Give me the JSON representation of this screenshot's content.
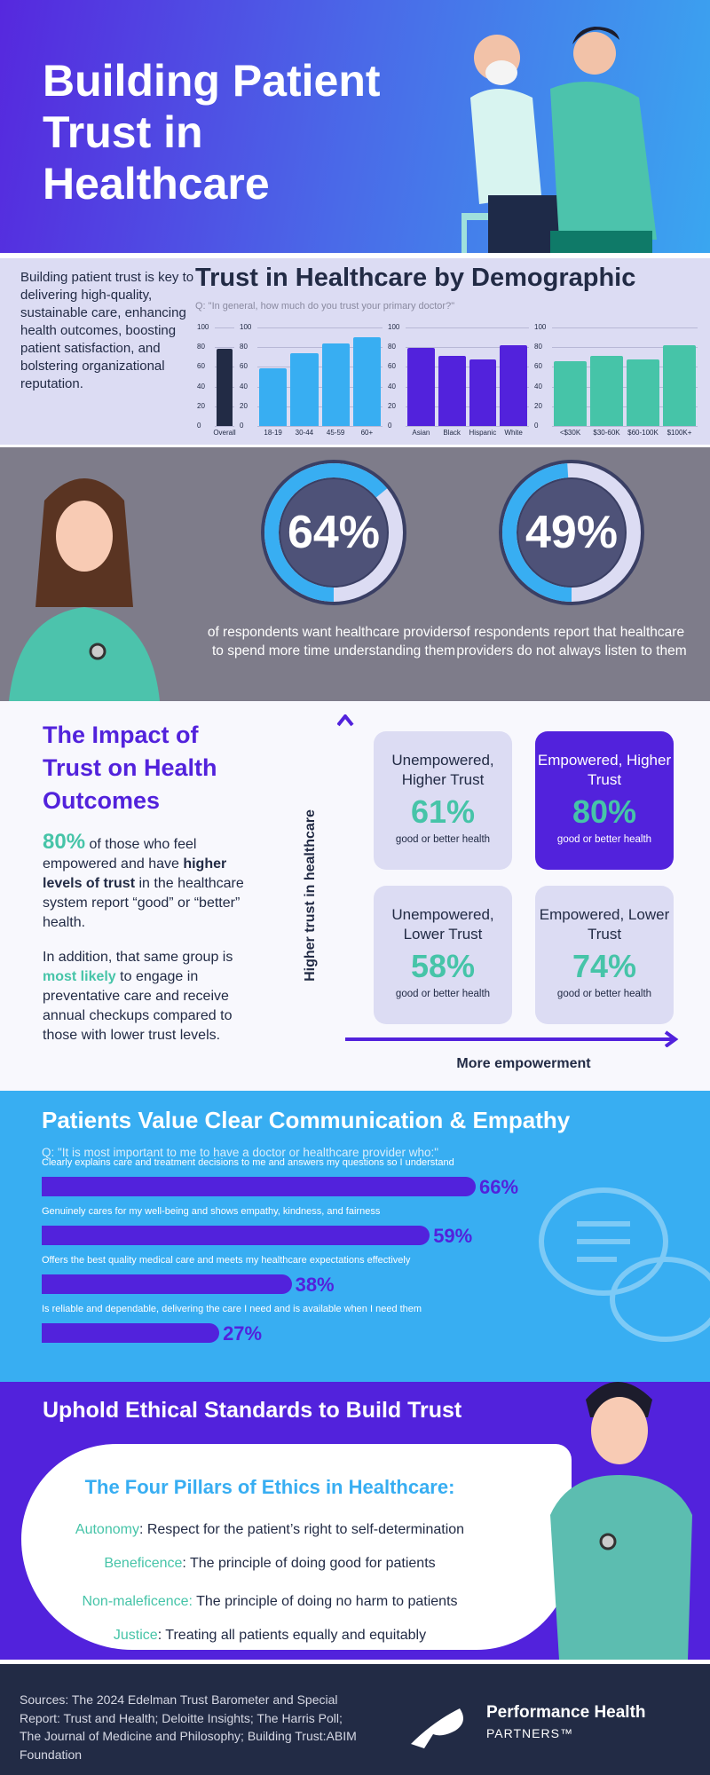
{
  "header": {
    "title": "Building Patient Trust in Healthcare"
  },
  "demographics": {
    "intro": "Building patient trust is key to delivering high-quality, sustainable care, enhancing health outcomes, boosting patient satisfaction, and bolstering organizational reputation.",
    "title": "Trust in Healthcare by Demographic",
    "question": "Q: \"In general, how much do you trust your primary doctor?\""
  },
  "chart_data": [
    {
      "type": "bar",
      "group": "overall",
      "categories": [
        "Overall"
      ],
      "values": [
        78
      ],
      "ylim": [
        0,
        100
      ],
      "yticks": [
        0,
        20,
        40,
        60,
        80,
        100
      ],
      "grid": true,
      "color": "#222b45"
    },
    {
      "type": "bar",
      "group": "age",
      "categories": [
        "18-19",
        "30-44",
        "45-59",
        "60+"
      ],
      "values": [
        59,
        74,
        84,
        90
      ],
      "ylim": [
        0,
        100
      ],
      "yticks": [
        0,
        20,
        40,
        60,
        80,
        100
      ],
      "grid": true,
      "color": "#38aef2"
    },
    {
      "type": "bar",
      "group": "race",
      "categories": [
        "Asian",
        "Black",
        "Hispanic",
        "White"
      ],
      "values": [
        79,
        71,
        68,
        82
      ],
      "ylim": [
        0,
        100
      ],
      "yticks": [
        0,
        20,
        40,
        60,
        80,
        100
      ],
      "grid": true,
      "color": "#5222dc"
    },
    {
      "type": "bar",
      "group": "income",
      "categories": [
        "<$30K",
        "$30-60K",
        "$60-100K",
        "$100K+"
      ],
      "values": [
        66,
        71,
        68,
        82
      ],
      "ylim": [
        0,
        100
      ],
      "yticks": [
        0,
        20,
        40,
        60,
        80,
        100
      ],
      "grid": true,
      "color": "#46c4a8"
    }
  ],
  "stats": [
    {
      "value": "64%",
      "fraction": 0.64,
      "caption": "of respondents want healthcare providers to spend more time understanding them"
    },
    {
      "value": "49%",
      "fraction": 0.49,
      "caption": "of respondents report that healthcare providers do not always listen to them"
    }
  ],
  "impact": {
    "title": "The Impact of Trust on Health Outcomes",
    "p1": {
      "pct": "80%",
      "a": " of those who feel empowered and have ",
      "b": "higher levels of trust",
      "c": " in the healthcare system report “good” or “better” health."
    },
    "p2": {
      "a": "In addition, that same group is ",
      "b": "most likely",
      "c": " to engage in preventative care and receive annual checkups compared to those with lower trust levels."
    },
    "y_axis": "Higher trust in healthcare",
    "x_axis": "More empowerment",
    "quadrants": [
      {
        "label": "Unempowered, Higher Trust",
        "value": "61%",
        "sub": "good or better health"
      },
      {
        "label": "Empowered, Higher Trust",
        "value": "80%",
        "sub": "good or better health"
      },
      {
        "label": "Unempowered, Lower Trust",
        "value": "58%",
        "sub": "good or better health"
      },
      {
        "label": "Empowered, Lower Trust",
        "value": "74%",
        "sub": "good or better health"
      }
    ]
  },
  "communication": {
    "title": "Patients Value Clear Communication & Empathy",
    "question": "Q: \"It is most important to me to have a doctor or healthcare provider who:\"",
    "items": [
      {
        "label": "Clearly explains care and treatment decisions to me and answers my questions so I understand",
        "value": 66,
        "display": "66%"
      },
      {
        "label": "Genuinely cares for my well-being and shows empathy, kindness, and fairness",
        "value": 59,
        "display": "59%"
      },
      {
        "label": "Offers the best quality medical care and meets my healthcare expectations effectively",
        "value": 38,
        "display": "38%"
      },
      {
        "label": "Is reliable and dependable, delivering the care I need and is available when I need them",
        "value": 27,
        "display": "27%"
      }
    ]
  },
  "ethics": {
    "title": "Uphold Ethical Standards to Build Trust",
    "subtitle": "The Four Pillars of Ethics in Healthcare:",
    "pillars": [
      {
        "term": "Autonomy",
        "desc": ": Respect for the patient’s right to self-determination"
      },
      {
        "term": "Beneficence",
        "desc": ": The principle of doing good for patients"
      },
      {
        "term": "Non-maleficence:",
        "desc": " The principle of doing no harm to patients"
      },
      {
        "term": "Justice",
        "desc": ": Treating all patients equally and equitably"
      }
    ]
  },
  "footer": {
    "sources": "Sources: The 2024 Edelman Trust Barometer and Special Report: Trust and Health; Deloitte Insights; The Harris Poll; The Journal of Medicine and Philosophy; Building Trust:ABIM Foundation",
    "brand_line1": "Performance Health",
    "brand_line2": "PARTNERS™"
  },
  "colors": {
    "purple": "#5222dc",
    "blue": "#38aef2",
    "teal": "#46c4a8",
    "navy": "#222b45"
  }
}
